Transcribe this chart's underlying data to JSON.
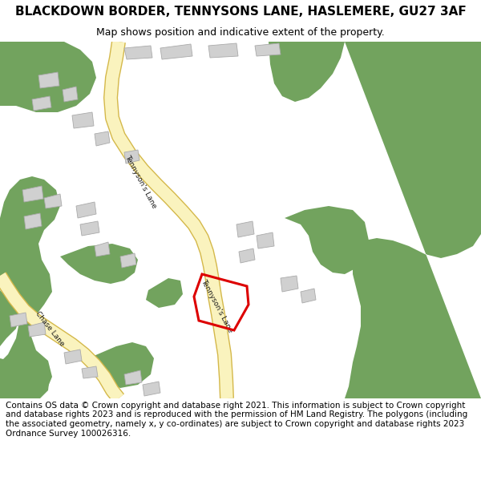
{
  "title": "BLACKDOWN BORDER, TENNYSONS LANE, HASLEMERE, GU27 3AF",
  "subtitle": "Map shows position and indicative extent of the property.",
  "footer": "Contains OS data © Crown copyright and database right 2021. This information is subject to Crown copyright and database rights 2023 and is reproduced with the permission of HM Land Registry. The polygons (including the associated geometry, namely x, y co-ordinates) are subject to Crown copyright and database rights 2023 Ordnance Survey 100026316.",
  "bg_color": "#ffffff",
  "map_bg": "#ffffff",
  "green_color": "#72a35e",
  "road_fill": "#faf3be",
  "road_edge": "#d4b84a",
  "building_color": "#d0d0d0",
  "building_edge": "#aaaaaa",
  "plot_color": "#dd0000",
  "title_fontsize": 11,
  "subtitle_fontsize": 9,
  "footer_fontsize": 7.5
}
